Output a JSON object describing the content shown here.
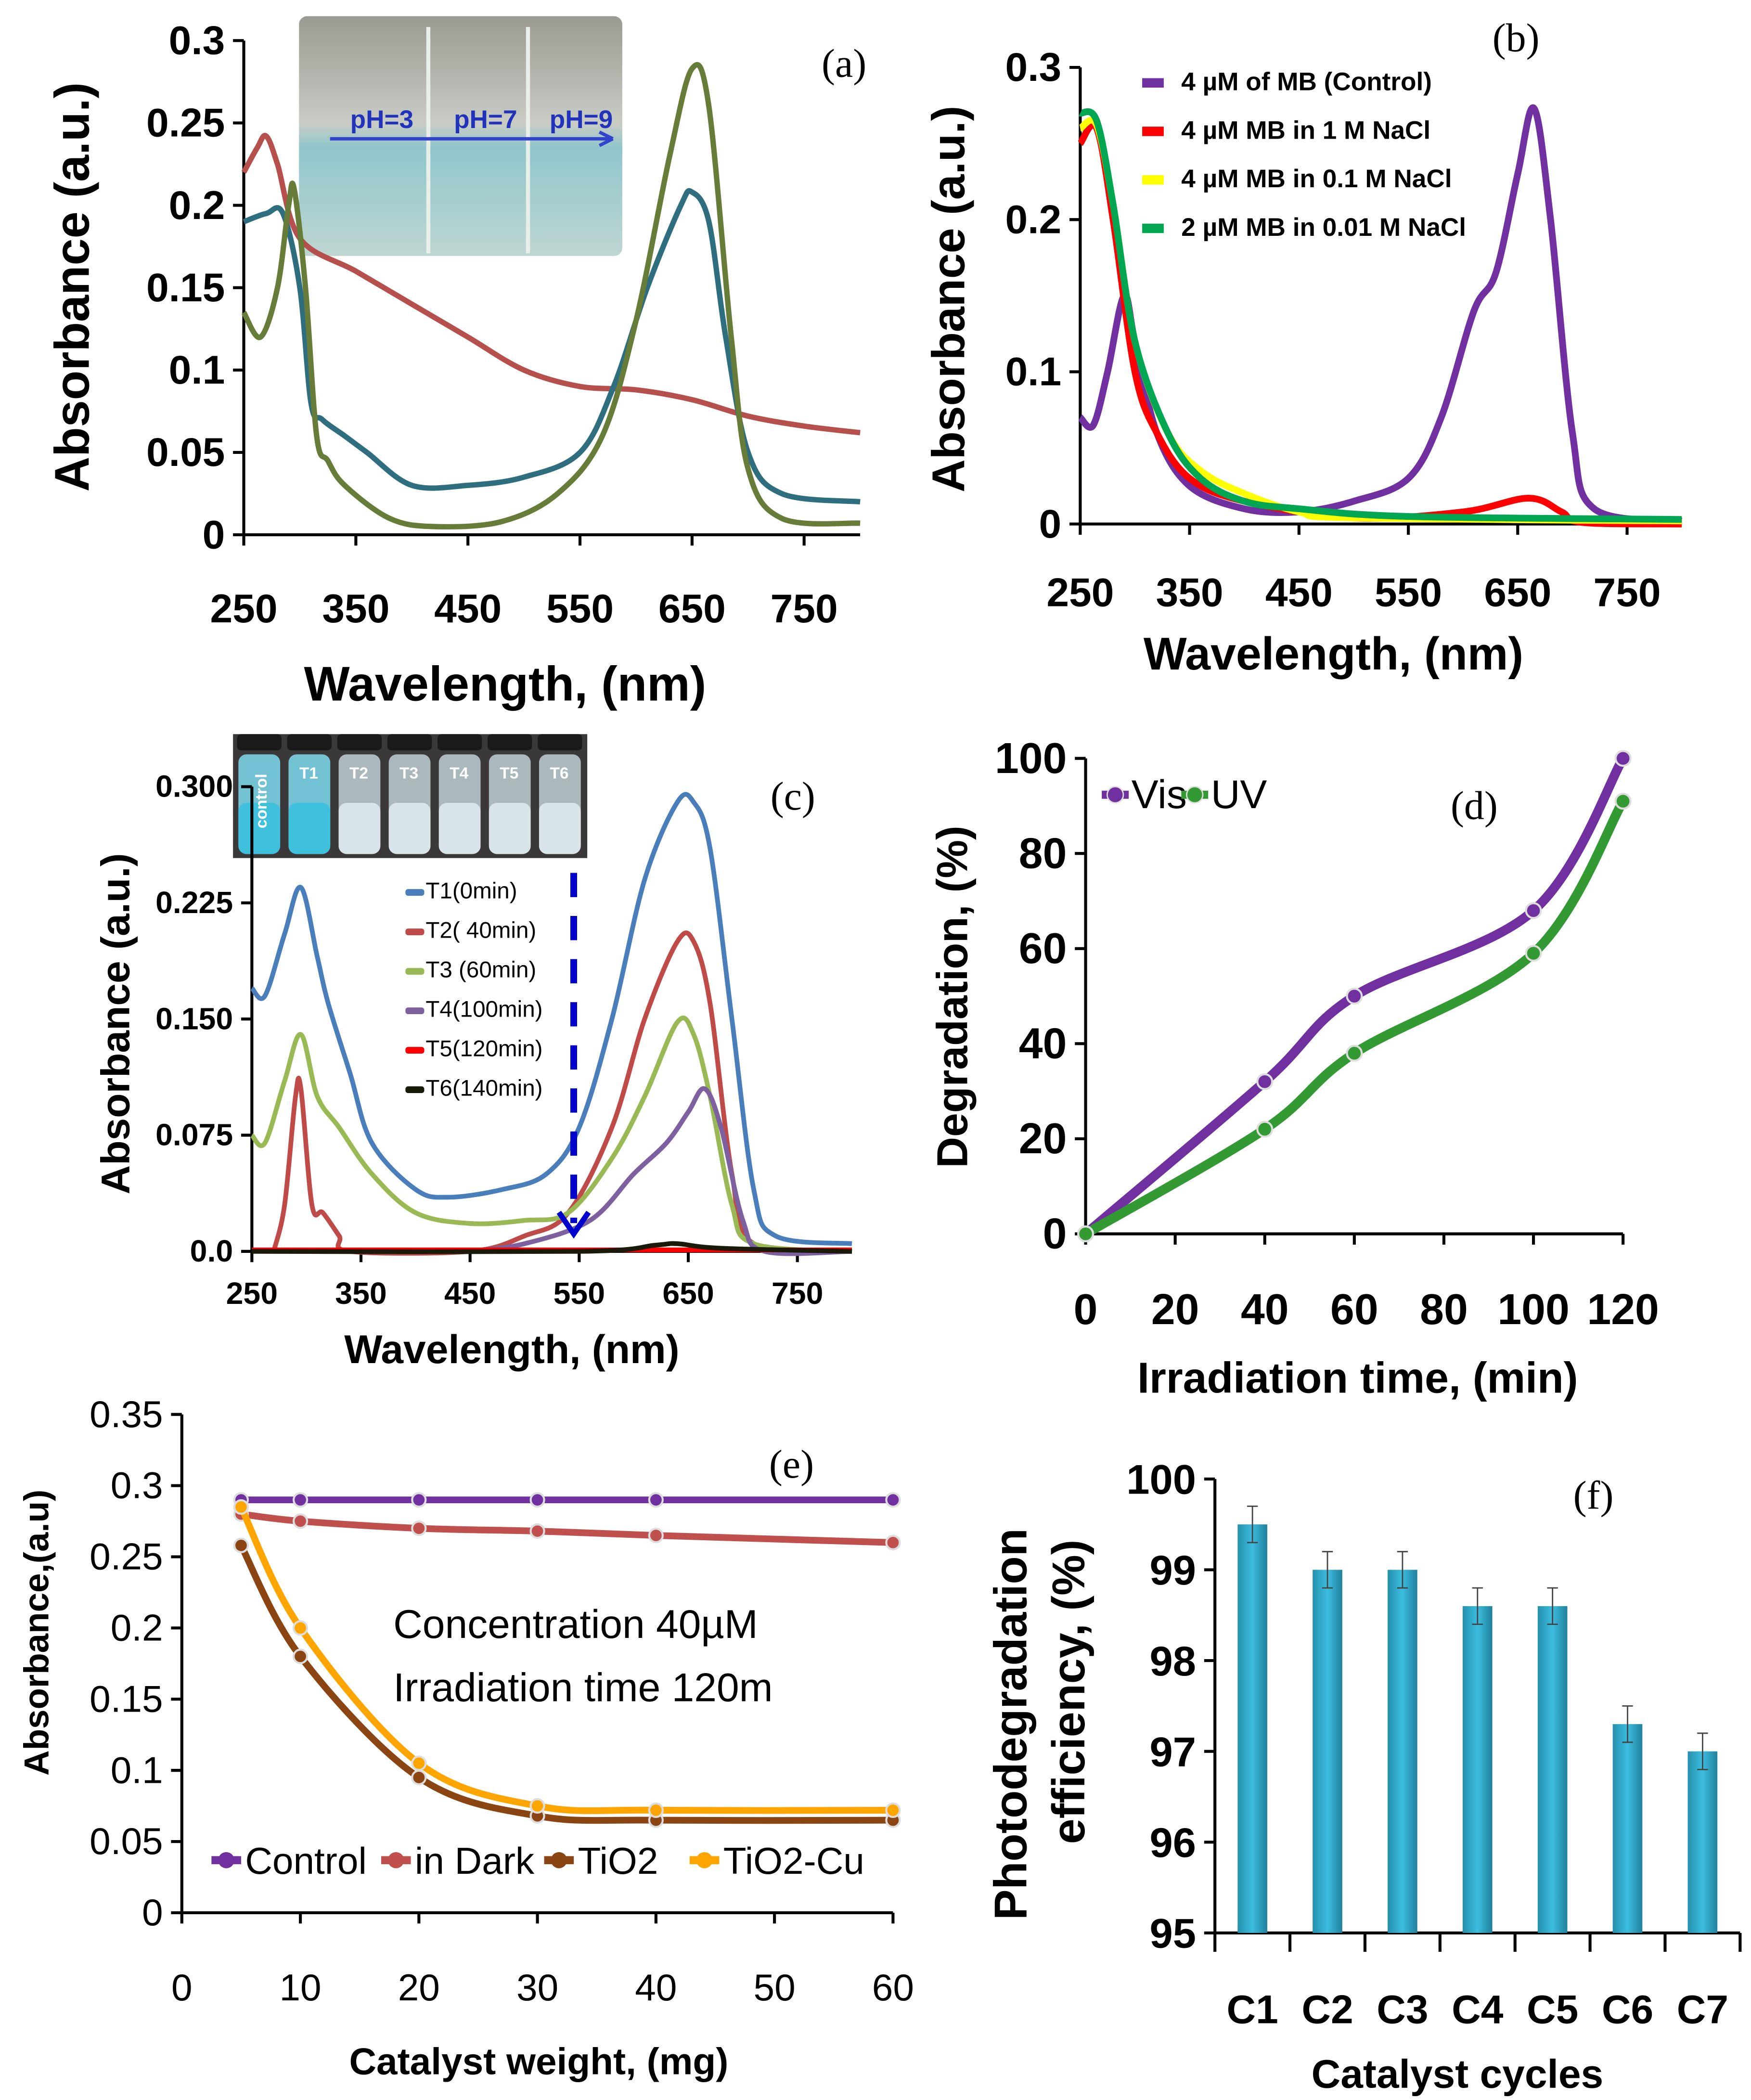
{
  "chart_data": [
    {
      "panel": "(a)",
      "type": "line",
      "xlabel": "Wavelength, (nm)",
      "ylabel": "Absorbance (a.u.)",
      "xlim": [
        250,
        800
      ],
      "ylim": [
        0,
        0.3
      ],
      "xticks": [
        250,
        350,
        450,
        550,
        650,
        750
      ],
      "xtick_labels": [
        "250",
        "350",
        "450",
        "550",
        "650",
        "750"
      ],
      "yticks": [
        0,
        0.05,
        0.1,
        0.15,
        0.2,
        0.25,
        0.3
      ],
      "ytick_labels": [
        "0",
        "0.05",
        "0.1",
        "0.15",
        "0.2",
        "0.25",
        "0.3"
      ],
      "inset_labels": [
        "pH=3",
        "pH=7",
        "pH=9"
      ],
      "series": [
        {
          "color": "#b5504d",
          "x": [
            250,
            262,
            270,
            280,
            300,
            350,
            400,
            450,
            500,
            550,
            600,
            650,
            700,
            750,
            800
          ],
          "y": [
            0.22,
            0.235,
            0.242,
            0.225,
            0.18,
            0.16,
            0.14,
            0.12,
            0.1,
            0.09,
            0.088,
            0.082,
            0.072,
            0.066,
            0.062
          ]
        },
        {
          "color": "#2e6e7e",
          "x": [
            250,
            270,
            285,
            300,
            310,
            320,
            340,
            360,
            400,
            450,
            500,
            550,
            580,
            610,
            640,
            650,
            665,
            680,
            700,
            730,
            800
          ],
          "y": [
            0.19,
            0.195,
            0.195,
            0.15,
            0.08,
            0.07,
            0.06,
            0.05,
            0.03,
            0.03,
            0.035,
            0.05,
            0.09,
            0.15,
            0.2,
            0.208,
            0.19,
            0.12,
            0.05,
            0.025,
            0.02
          ]
        },
        {
          "color": "#677c38",
          "x": [
            250,
            265,
            280,
            290,
            295,
            305,
            315,
            325,
            340,
            380,
            420,
            480,
            530,
            570,
            600,
            630,
            650,
            665,
            685,
            700,
            730,
            800
          ],
          "y": [
            0.135,
            0.12,
            0.15,
            0.2,
            0.21,
            0.15,
            0.06,
            0.045,
            0.03,
            0.01,
            0.005,
            0.008,
            0.025,
            0.06,
            0.13,
            0.23,
            0.283,
            0.26,
            0.12,
            0.04,
            0.01,
            0.007
          ]
        }
      ]
    },
    {
      "panel": "(b)",
      "type": "line",
      "xlabel": "Wavelength, (nm)",
      "ylabel": "Absorbance (a.u.)",
      "xlim": [
        250,
        800
      ],
      "ylim": [
        0,
        0.3
      ],
      "xticks": [
        250,
        350,
        450,
        550,
        650,
        750
      ],
      "xtick_labels": [
        "250",
        "350",
        "450",
        "550",
        "650",
        "750"
      ],
      "yticks": [
        0,
        0.1,
        0.2,
        0.3
      ],
      "ytick_labels": [
        "0",
        "0.1",
        "0.2",
        "0.3"
      ],
      "legend": "top-right",
      "series": [
        {
          "name": "4 µM of MB (Control)",
          "color": "#7030a0",
          "x": [
            250,
            262,
            275,
            290,
            300,
            320,
            350,
            400,
            450,
            500,
            550,
            580,
            610,
            630,
            650,
            665,
            680,
            700,
            720,
            800
          ],
          "y": [
            0.07,
            0.065,
            0.1,
            0.15,
            0.12,
            0.06,
            0.025,
            0.01,
            0.008,
            0.015,
            0.03,
            0.07,
            0.14,
            0.165,
            0.23,
            0.273,
            0.2,
            0.06,
            0.01,
            0.002
          ]
        },
        {
          "name": "4 µM MB in 1 M  NaCl",
          "color": "#ff0000",
          "x": [
            250,
            265,
            280,
            300,
            320,
            350,
            400,
            500,
            600,
            660,
            690,
            710,
            800
          ],
          "y": [
            0.25,
            0.26,
            0.2,
            0.1,
            0.06,
            0.03,
            0.015,
            0.004,
            0.008,
            0.017,
            0.008,
            0.001,
            0
          ]
        },
        {
          "name": "4 µM MB in 0.1 M NaCl",
          "color": "#ffff00",
          "x": [
            250,
            265,
            280,
            300,
            330,
            360,
            400,
            450,
            500,
            800
          ],
          "y": [
            0.26,
            0.262,
            0.21,
            0.12,
            0.06,
            0.035,
            0.02,
            0.008,
            0.004,
            0.002
          ]
        },
        {
          "name": "2 µM MB in 0.01 M NaCl",
          "color": "#00a651",
          "x": [
            250,
            265,
            280,
            300,
            330,
            360,
            400,
            450,
            550,
            800
          ],
          "y": [
            0.27,
            0.265,
            0.21,
            0.12,
            0.06,
            0.03,
            0.015,
            0.01,
            0.005,
            0.003
          ]
        }
      ]
    },
    {
      "panel": "(c)",
      "type": "line",
      "xlabel": "Wavelength, (nm)",
      "ylabel": "Absorbance (a.u.)",
      "xlim": [
        250,
        800
      ],
      "ylim": [
        0,
        0.3
      ],
      "xticks": [
        250,
        350,
        450,
        550,
        650,
        750
      ],
      "xtick_labels": [
        "250",
        "350",
        "450",
        "550",
        "650",
        "750"
      ],
      "yticks": [
        0,
        0.075,
        0.15,
        0.225,
        0.3
      ],
      "ytick_labels": [
        "0.0",
        "0.075",
        "0.150",
        "0.225",
        "0.300"
      ],
      "inset_labels": [
        "control",
        "T1",
        "T2",
        "T3",
        "T4",
        "T5",
        "T6"
      ],
      "series": [
        {
          "name": "T1(0min)",
          "color": "#4a7ebb",
          "x": [
            250,
            262,
            280,
            295,
            310,
            320,
            340,
            360,
            400,
            430,
            480,
            520,
            550,
            580,
            610,
            640,
            655,
            670,
            690,
            710,
            730,
            800
          ],
          "y": [
            0.17,
            0.165,
            0.205,
            0.235,
            0.19,
            0.16,
            0.115,
            0.07,
            0.04,
            0.035,
            0.04,
            0.05,
            0.08,
            0.15,
            0.24,
            0.29,
            0.29,
            0.26,
            0.15,
            0.04,
            0.01,
            0.005
          ]
        },
        {
          "name": "T2( 40min)",
          "color": "#be4b48",
          "x": [
            270,
            280,
            290,
            295,
            305,
            315,
            330,
            340,
            450,
            500,
            540,
            580,
            610,
            640,
            655,
            670,
            690,
            710,
            800
          ],
          "y": [
            0,
            0.03,
            0.1,
            0.105,
            0.03,
            0.025,
            0.01,
            0,
            0,
            0.01,
            0.025,
            0.08,
            0.15,
            0.2,
            0.2,
            0.16,
            0.05,
            0.005,
            0
          ]
        },
        {
          "name": "T3 (60min)",
          "color": "#98b954",
          "x": [
            250,
            262,
            280,
            295,
            310,
            330,
            360,
            400,
            450,
            500,
            540,
            580,
            610,
            640,
            655,
            670,
            690,
            710,
            800
          ],
          "y": [
            0.075,
            0.07,
            0.11,
            0.14,
            0.1,
            0.08,
            0.05,
            0.025,
            0.018,
            0.02,
            0.025,
            0.06,
            0.1,
            0.148,
            0.14,
            0.1,
            0.03,
            0.005,
            0
          ]
        },
        {
          "name": "T4(100min)",
          "color": "#7d60a0",
          "x": [
            450,
            500,
            560,
            600,
            630,
            650,
            665,
            680,
            700,
            720,
            800
          ],
          "y": [
            0,
            0.005,
            0.02,
            0.05,
            0.07,
            0.09,
            0.105,
            0.08,
            0.02,
            0,
            0
          ]
        },
        {
          "name": "T5(120min)",
          "color": "#ff0000",
          "x": [
            250,
            400,
            550,
            700,
            800
          ],
          "y": [
            0.001,
            0.001,
            0.001,
            0.001,
            0.001
          ]
        },
        {
          "name": "T6(140min)",
          "color": "#1a1a0a",
          "x": [
            250,
            550,
            620,
            640,
            680,
            800
          ],
          "y": [
            0,
            0,
            0.004,
            0.005,
            0.002,
            0
          ]
        }
      ]
    },
    {
      "panel": "(d)",
      "type": "line",
      "xlabel": "Irradiation time, (min)",
      "ylabel": "Degradation, (%)",
      "xlim": [
        0,
        120
      ],
      "ylim": [
        0,
        100
      ],
      "xticks": [
        0,
        20,
        40,
        60,
        80,
        100,
        120
      ],
      "xtick_labels": [
        "0",
        "20",
        "40",
        "60",
        "80",
        "100",
        "120"
      ],
      "yticks": [
        0,
        20,
        40,
        60,
        80,
        100
      ],
      "ytick_labels": [
        "0",
        "20",
        "40",
        "60",
        "80",
        "100"
      ],
      "legend": "top-left",
      "series": [
        {
          "name": "Vis",
          "color": "#7030a0",
          "x": [
            0,
            40,
            60,
            100,
            120
          ],
          "y": [
            0,
            32,
            50,
            68,
            100
          ]
        },
        {
          "name": "UV",
          "color": "#339933",
          "x": [
            0,
            40,
            60,
            100,
            120
          ],
          "y": [
            0,
            22,
            38,
            59,
            91
          ]
        }
      ]
    },
    {
      "panel": "(e)",
      "type": "line",
      "xlabel": "Catalyst weight, (mg)",
      "ylabel": "Absorbance,(a.u)",
      "xlim": [
        0,
        60
      ],
      "ylim": [
        0,
        0.35
      ],
      "xticks": [
        0,
        10,
        20,
        30,
        40,
        50,
        60
      ],
      "xtick_labels": [
        "0",
        "10",
        "20",
        "30",
        "40",
        "50",
        "60"
      ],
      "yticks": [
        0,
        0.05,
        0.1,
        0.15,
        0.2,
        0.25,
        0.3,
        0.35
      ],
      "ytick_labels": [
        "0",
        "0.05",
        "0.1",
        "0.15",
        "0.2",
        "0.25",
        "0.3",
        "0.35"
      ],
      "legend": "bottom",
      "annotations": [
        "Concentration 40µM",
        "Irradiation time 120m"
      ],
      "series": [
        {
          "name": "Control",
          "color": "#7030a0",
          "x": [
            5,
            10,
            20,
            30,
            40,
            60
          ],
          "y": [
            0.29,
            0.29,
            0.29,
            0.29,
            0.29,
            0.29
          ]
        },
        {
          "name": "in Dark",
          "color": "#c0504d",
          "x": [
            5,
            10,
            20,
            30,
            40,
            60
          ],
          "y": [
            0.28,
            0.275,
            0.27,
            0.268,
            0.265,
            0.26
          ]
        },
        {
          "name": "TiO2",
          "color": "#8b4513",
          "x": [
            5,
            10,
            20,
            30,
            40,
            60
          ],
          "y": [
            0.258,
            0.18,
            0.095,
            0.068,
            0.065,
            0.065
          ]
        },
        {
          "name": "TiO2-Cu",
          "color": "#ffa500",
          "x": [
            5,
            10,
            20,
            30,
            40,
            60
          ],
          "y": [
            0.285,
            0.2,
            0.105,
            0.075,
            0.072,
            0.072
          ]
        }
      ]
    },
    {
      "panel": "(f)",
      "type": "bar",
      "xlabel": "Catalyst cycles",
      "ylabel": [
        "Photodegradation",
        "efficiency, (%)"
      ],
      "ylim": [
        95,
        100
      ],
      "yticks": [
        95,
        96,
        97,
        98,
        99,
        100
      ],
      "ytick_labels": [
        "95",
        "96",
        "97",
        "98",
        "99",
        "100"
      ],
      "categories": [
        "C1",
        "C2",
        "C3",
        "C4",
        "C5",
        "C6",
        "C7"
      ],
      "values": [
        99.5,
        99.0,
        99.0,
        98.6,
        98.6,
        97.3,
        97.0
      ],
      "errors": [
        0.2,
        0.2,
        0.2,
        0.2,
        0.2,
        0.2,
        0.2
      ],
      "color": "#31b0d5"
    }
  ]
}
